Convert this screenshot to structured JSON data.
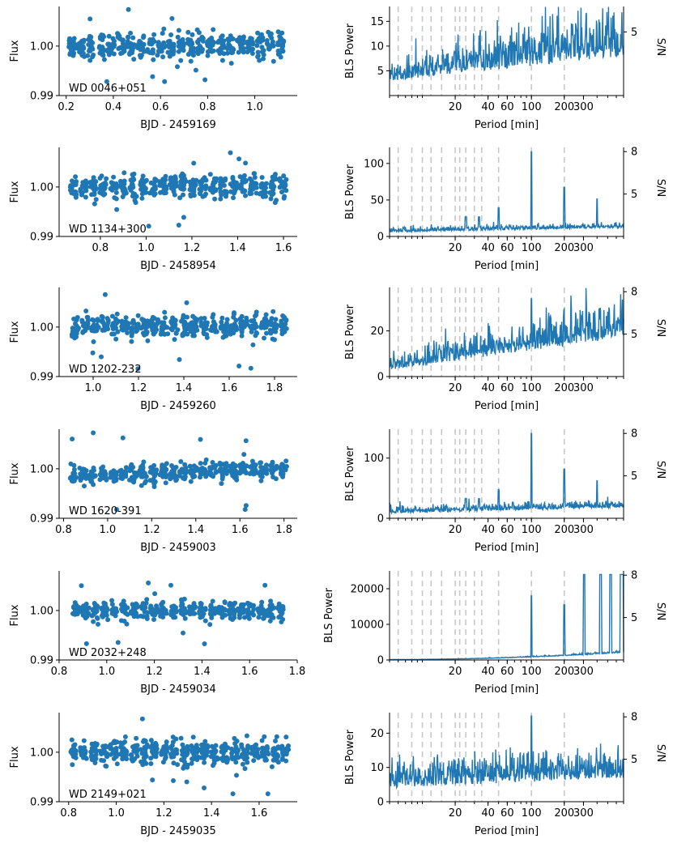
{
  "figure": {
    "rows": [
      {
        "label": "WD 0046+051",
        "xlabel": "BJD - 2459169",
        "xlim": [
          0.17,
          1.18
        ],
        "xticks": [
          "0.2",
          "0.4",
          "0.6",
          "0.8",
          "1.0"
        ],
        "xtickvals": [
          0.2,
          0.4,
          0.6,
          0.8,
          1.0
        ],
        "right_yticks": [
          "5",
          "10",
          "15"
        ],
        "right_ytickvals": [
          5,
          10,
          15
        ],
        "right_ymax": 18,
        "sn_ticks": [
          "5"
        ],
        "sn_tickvals": [
          5
        ],
        "sn_range": [
          2,
          6.2
        ],
        "bls_style": "noisy_high"
      },
      {
        "label": "WD 1134+300",
        "xlabel": "BJD - 2458954",
        "xlim": [
          0.62,
          1.66
        ],
        "xticks": [
          "0.8",
          "1.0",
          "1.2",
          "1.4",
          "1.6"
        ],
        "xtickvals": [
          0.8,
          1.0,
          1.2,
          1.4,
          1.6
        ],
        "right_yticks": [
          "0",
          "50",
          "100"
        ],
        "right_ytickvals": [
          0,
          50,
          100
        ],
        "right_ymax": 122,
        "sn_ticks": [
          "5",
          "8"
        ],
        "sn_tickvals": [
          5,
          8
        ],
        "sn_range": [
          2,
          8.3
        ],
        "bls_style": "flat_peaks"
      },
      {
        "label": "WD 1202-232",
        "xlabel": "BJD - 2459260",
        "xlim": [
          0.85,
          1.9
        ],
        "xticks": [
          "1.0",
          "1.2",
          "1.4",
          "1.6",
          "1.8"
        ],
        "xtickvals": [
          1.0,
          1.2,
          1.4,
          1.6,
          1.8
        ],
        "right_yticks": [
          "0",
          "20"
        ],
        "right_ytickvals": [
          0,
          20
        ],
        "right_ymax": 39,
        "sn_ticks": [
          "5",
          "8"
        ],
        "sn_tickvals": [
          5,
          8
        ],
        "sn_range": [
          2,
          8.3
        ],
        "bls_style": "rising"
      },
      {
        "label": "WD 1620-391",
        "xlabel": "BJD - 2459003",
        "xlim": [
          0.78,
          1.86
        ],
        "xticks": [
          "0.8",
          "1.0",
          "1.2",
          "1.4",
          "1.6",
          "1.8"
        ],
        "xtickvals": [
          0.8,
          1.0,
          1.2,
          1.4,
          1.6,
          1.8
        ],
        "right_yticks": [
          "0",
          "100"
        ],
        "right_ytickvals": [
          0,
          100
        ],
        "right_ymax": 148,
        "sn_ticks": [
          "5",
          "8"
        ],
        "sn_tickvals": [
          5,
          8
        ],
        "sn_range": [
          2,
          8.3
        ],
        "bls_style": "flat_peaks_med"
      },
      {
        "label": "WD 2032+248",
        "xlabel": "BJD - 2459034",
        "xlim": [
          0.8,
          1.8
        ],
        "xticks": [
          "0.8",
          "1.0",
          "1.2",
          "1.4",
          "1.6",
          "1.8"
        ],
        "xtickvals": [
          0.8,
          1.0,
          1.2,
          1.4,
          1.6,
          1.8
        ],
        "right_yticks": [
          "0",
          "10000",
          "20000"
        ],
        "right_ytickvals": [
          0,
          10000,
          20000
        ],
        "right_ymax": 25000,
        "sn_ticks": [
          "5",
          "8"
        ],
        "sn_tickvals": [
          5,
          8
        ],
        "sn_range": [
          2,
          8.3
        ],
        "bls_style": "spikes"
      },
      {
        "label": "WD 2149+021",
        "xlabel": "BJD - 2459035",
        "xlim": [
          0.76,
          1.76
        ],
        "xticks": [
          "0.8",
          "1.0",
          "1.2",
          "1.4",
          "1.6"
        ],
        "xtickvals": [
          0.8,
          1.0,
          1.2,
          1.4,
          1.6
        ],
        "right_yticks": [
          "0",
          "10",
          "20"
        ],
        "right_ytickvals": [
          0,
          10,
          20
        ],
        "right_ymax": 26,
        "sn_ticks": [
          "5",
          "8"
        ],
        "sn_tickvals": [
          5,
          8
        ],
        "sn_range": [
          2,
          8.3
        ],
        "bls_style": "noisy_mid"
      }
    ],
    "left_ylabel": "Flux",
    "left_yticks": [
      "0.99",
      "1.00"
    ],
    "left_ytickvals": [
      0.99,
      1.0
    ],
    "left_ylim": [
      0.99,
      1.008
    ],
    "right_ylabel": "BLS Power",
    "right_y2label": "S/N",
    "right_xlabel": "Period [min]",
    "period_ticks": [
      "20",
      "40",
      "60",
      "100",
      "200",
      "300"
    ],
    "period_tickvals": [
      20,
      40,
      60,
      100,
      200,
      300
    ],
    "period_range": [
      5,
      700
    ],
    "harmonic_lines": [
      6,
      8,
      10,
      12,
      15,
      20,
      22,
      25,
      30,
      35,
      50,
      100,
      200
    ]
  },
  "chart_data": {
    "type": "scatter",
    "title": "",
    "series": [
      {
        "name": "WD 0046+051",
        "x_range": [
          0.2,
          1.13
        ],
        "flux_center": 1.0,
        "flux_scatter": 0.002
      },
      {
        "name": "WD 1134+300",
        "x_range": [
          0.66,
          1.62
        ],
        "flux_center": 1.0,
        "flux_scatter": 0.002
      },
      {
        "name": "WD 1202-232",
        "x_range": [
          0.9,
          1.86
        ],
        "flux_center": 1.0,
        "flux_scatter": 0.002
      },
      {
        "name": "WD 1620-391",
        "x_range": [
          0.82,
          1.82
        ],
        "flux_center": 1.0,
        "flux_scatter": 0.0015
      },
      {
        "name": "WD 2032+248",
        "x_range": [
          0.85,
          1.75
        ],
        "flux_center": 1.0,
        "flux_scatter": 0.0015
      },
      {
        "name": "WD 2149+021",
        "x_range": [
          0.8,
          1.73
        ],
        "flux_center": 1.0,
        "flux_scatter": 0.002
      }
    ],
    "colors": {
      "points": "#1f77b4",
      "bls": "#1f77b4",
      "harmonics": "#c8c8c8"
    }
  }
}
